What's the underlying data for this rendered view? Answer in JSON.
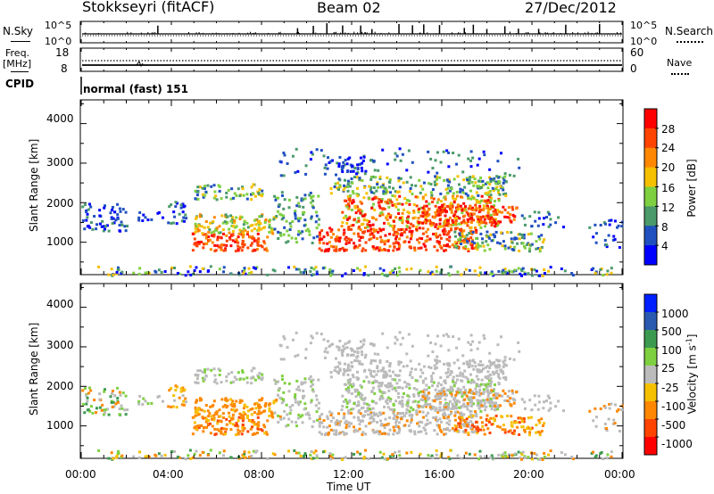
{
  "header": {
    "station": "Stokkseyri (fitACF)",
    "beam": "Beam 02",
    "date": "27/Dec/2012"
  },
  "noise_panel": {
    "left_label": "N.Sky",
    "right_label": "N.Search",
    "left_ticks": [
      "10^5",
      "10^0"
    ],
    "right_ticks": [
      "10^5",
      "10^0"
    ]
  },
  "freq_panel": {
    "left_label_1": "Freq.",
    "left_label_2": "[MHz]",
    "right_label": "Nave",
    "left_ticks": [
      "18",
      "8"
    ],
    "right_ticks": [
      "60",
      "0"
    ]
  },
  "cpid": {
    "label": "CPID",
    "value": "normal (fast) 151"
  },
  "power_panel": {
    "ylabel": "Slant Range [km]",
    "yticks": [
      "4000",
      "3000",
      "2000",
      "1000"
    ],
    "colorbar_label": "Power [dB]",
    "colorbar_ticks": [
      "28",
      "24",
      "20",
      "16",
      "12",
      "8",
      "4"
    ],
    "colorbar_colors": [
      "#ff0000",
      "#ff4400",
      "#ff8800",
      "#f5c000",
      "#7fd040",
      "#4a9a6a",
      "#2050c0",
      "#0000ff"
    ]
  },
  "velocity_panel": {
    "ylabel": "Slant Range [km]",
    "yticks": [
      "4000",
      "3000",
      "2000",
      "1000"
    ],
    "colorbar_label": "Velocity [m s",
    "colorbar_label_sup": "-1",
    "colorbar_label_end": "]",
    "colorbar_ticks": [
      "1000",
      "500",
      "100",
      "25",
      "-25",
      "-100",
      "-500",
      "-1000"
    ],
    "colorbar_colors": [
      "#0020ff",
      "#2a5ab0",
      "#3c9a50",
      "#7fd040",
      "#bbbbbb",
      "#f5c000",
      "#ff8800",
      "#ff4400",
      "#ff0000"
    ]
  },
  "xaxis": {
    "label": "Time UT",
    "ticks": [
      "00:00",
      "04:00",
      "08:00",
      "12:00",
      "16:00",
      "20:00",
      "00:00"
    ]
  },
  "chart_data": {
    "type": "heatmap",
    "x_range_hours": [
      0,
      24
    ],
    "y_range_km": [
      180,
      4600
    ],
    "power_scale_db": [
      0,
      30
    ],
    "velocity_scale_ms": [
      -1000,
      1000
    ],
    "noise_spike_hours": [
      3.4,
      9.6,
      10.3,
      10.9,
      11.6,
      12.4,
      12.9,
      14.1,
      14.7,
      15.2,
      15.9,
      17.0,
      17.4,
      18.0,
      18.8,
      19.4,
      20.3,
      21.5,
      23.0
    ]
  }
}
